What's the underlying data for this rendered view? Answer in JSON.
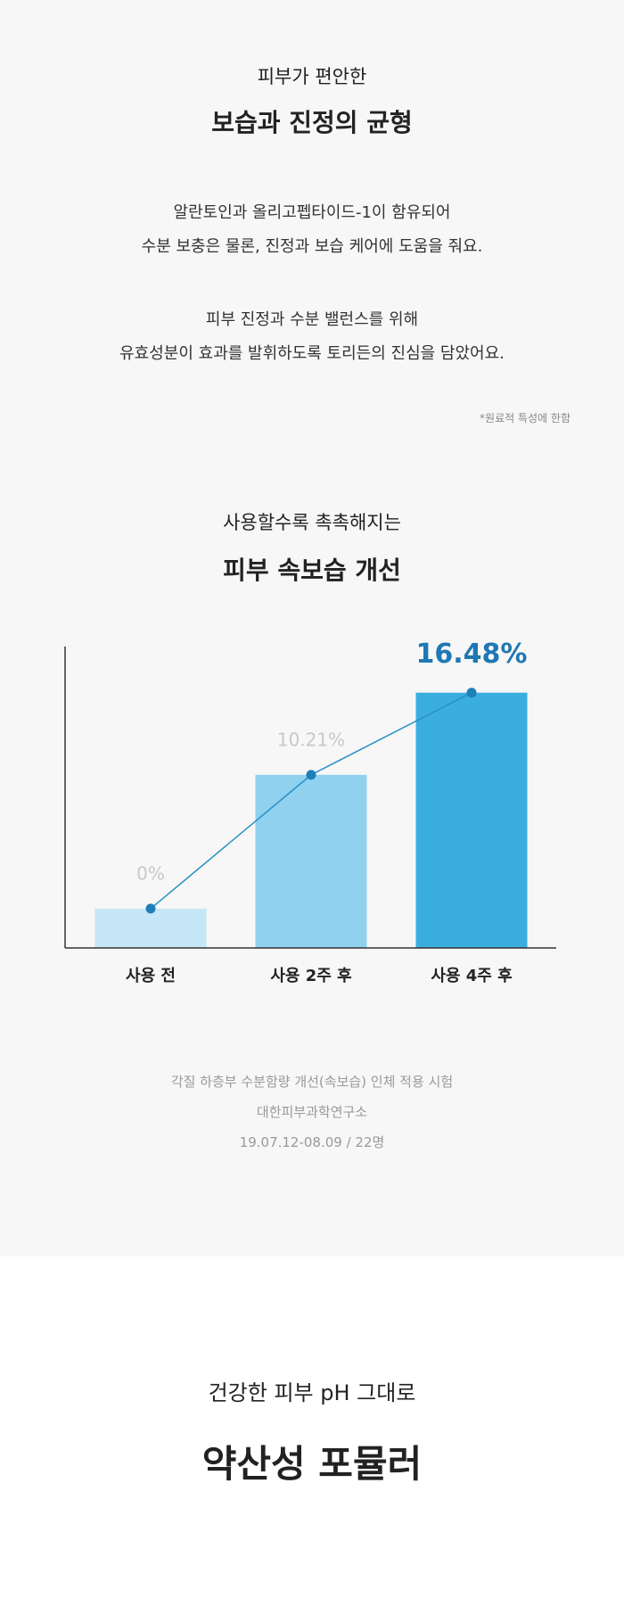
{
  "section1": {
    "subtitle": "피부가 편안한",
    "title": "보습과 진정의 균형",
    "paragraphs": [
      [
        "알란토인과 올리고펩타이드-1이 함유되어",
        "수분 보충은 물론, 진정과 보습 케어에 도움을 줘요."
      ],
      [
        "피부 진정과 수분 밸런스를 위해",
        "유효성분이 효과를 발휘하도록 토리든의 진심을 담았어요."
      ]
    ],
    "note": "*원료적 특성에 한함"
  },
  "chart_data": {
    "type": "bar",
    "subtitle": "사용할수록 촉촉해지는",
    "title": "피부 속보습 개선",
    "categories": [
      "사용 전",
      "사용 2주 후",
      "사용 4주 후"
    ],
    "values": [
      0,
      10.21,
      16.48
    ],
    "value_labels": [
      "0%",
      "10.21%",
      "16.48%"
    ],
    "colors": [
      "#c6e7f8",
      "#90d1f0",
      "#3baee0"
    ],
    "line_color": "#2a8fc4",
    "ylim": [
      -3,
      20
    ],
    "footnotes": [
      "각질 하층부 수분함량 개선(속보습) 인체 적용 시험",
      "대한피부과학연구소",
      "19.07.12-08.09 / 22명"
    ]
  },
  "section3": {
    "subtitle": "건강한 피부 pH 그대로",
    "title": "약산성 포뮬러"
  }
}
